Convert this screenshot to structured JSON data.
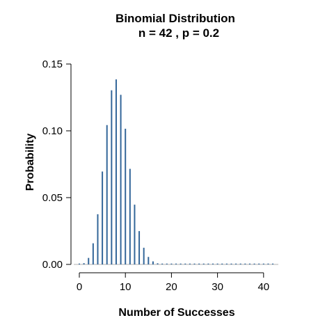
{
  "chart_data": {
    "type": "bar",
    "title": "Binomial Distribution",
    "subtitle": "n = 42 , p = 0.2",
    "xlabel": "Number of Successes",
    "ylabel": "Probability",
    "xlim": [
      0,
      42
    ],
    "ylim": [
      0,
      0.15
    ],
    "x_ticks": [
      0,
      10,
      20,
      30,
      40
    ],
    "x_tick_labels": [
      "0",
      "10",
      "20",
      "30",
      "40"
    ],
    "y_ticks": [
      0,
      0.05,
      0.1,
      0.15
    ],
    "y_tick_labels": [
      "0.00",
      "0.05",
      "0.10",
      "0.15"
    ],
    "grid": false,
    "bar_color": "#336699",
    "x": [
      0,
      1,
      2,
      3,
      4,
      5,
      6,
      7,
      8,
      9,
      10,
      11,
      12,
      13,
      14,
      15,
      16,
      17,
      18,
      19,
      20,
      21,
      22,
      23,
      24,
      25,
      26,
      27,
      28,
      29,
      30,
      31,
      32,
      33,
      34,
      35,
      36,
      37,
      38,
      39,
      40,
      41,
      42
    ],
    "values": [
      9e-05,
      0.00093,
      0.00487,
      0.01582,
      0.03758,
      0.06952,
      0.10427,
      0.13034,
      0.13849,
      0.12694,
      0.10155,
      0.07155,
      0.04472,
      0.02494,
      0.01247,
      0.00561,
      0.00228,
      0.00084,
      0.00028,
      8e-05,
      2e-05,
      1e-05,
      0,
      0,
      0,
      0,
      0,
      0,
      0,
      0,
      0,
      0,
      0,
      0,
      0,
      0,
      0,
      0,
      0,
      0,
      0,
      0,
      0
    ]
  }
}
